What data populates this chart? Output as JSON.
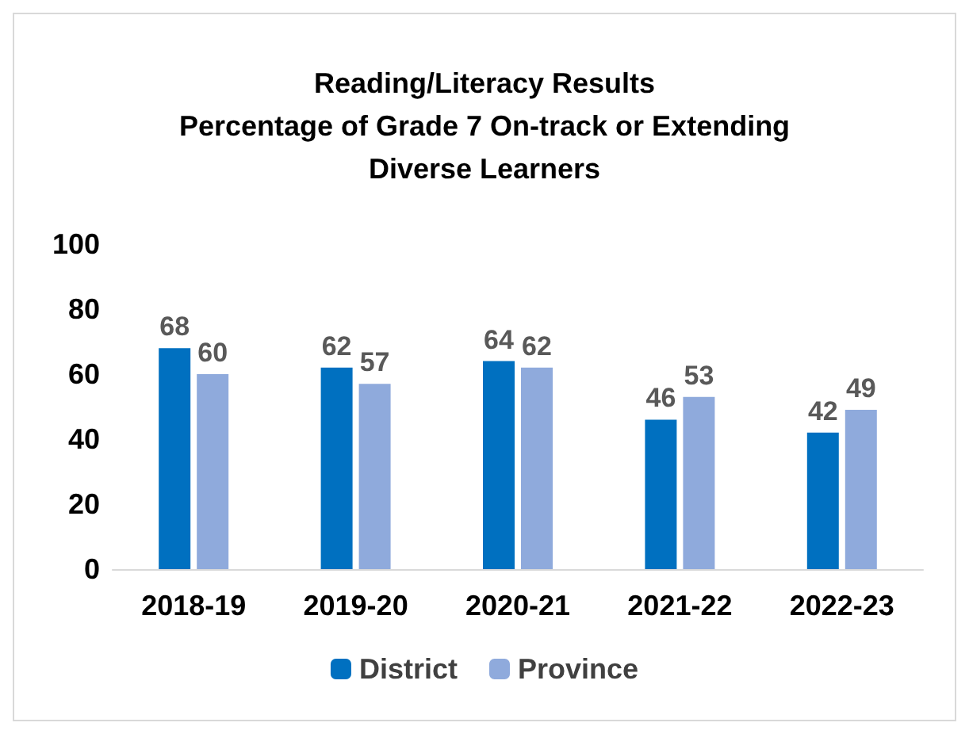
{
  "chart_data": {
    "type": "bar",
    "title": "Reading/Literacy Results\nPercentage of Grade 7 On-track or Extending\nDiverse Learners",
    "categories": [
      "2018-19",
      "2019-20",
      "2020-21",
      "2021-22",
      "2022-23"
    ],
    "series": [
      {
        "name": "District",
        "color": "#0070c0",
        "values": [
          68,
          62,
          64,
          46,
          42
        ]
      },
      {
        "name": "Province",
        "color": "#8faadc",
        "values": [
          60,
          57,
          62,
          53,
          49
        ]
      }
    ],
    "ylim": [
      0,
      100
    ],
    "yticks": [
      0,
      20,
      40,
      60,
      80,
      100
    ],
    "data_labels": true,
    "legend": "bottom"
  }
}
